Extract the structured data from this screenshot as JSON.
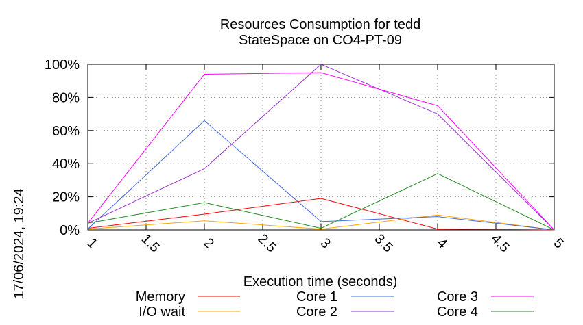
{
  "chart_data": {
    "type": "line",
    "title_line1": "Resources Consumption for tedd",
    "title_line2": "StateSpace on CO4-PT-09",
    "xlabel": "Execution time (seconds)",
    "ylabel": "",
    "side_label": "17/06/2024, 19:24",
    "xlim": [
      1,
      5
    ],
    "ylim": [
      0,
      100
    ],
    "x_ticks": [
      "1",
      "1.5",
      "2",
      "2.5",
      "3",
      "3.5",
      "4",
      "4.5",
      "5"
    ],
    "y_ticks": [
      "0%",
      "20%",
      "40%",
      "60%",
      "80%",
      "100%"
    ],
    "grid": true,
    "legend_position": "bottom",
    "x": [
      1,
      2,
      3,
      4,
      5
    ],
    "series": [
      {
        "name": "Memory",
        "color": "#ff0000",
        "values": [
          1,
          9.5,
          19,
          0.5,
          0
        ]
      },
      {
        "name": "I/O wait",
        "color": "#ffa500",
        "values": [
          0.5,
          5.5,
          0.5,
          9,
          0
        ]
      },
      {
        "name": "Core 1",
        "color": "#4169e1",
        "values": [
          0.5,
          66,
          5,
          8,
          0
        ]
      },
      {
        "name": "Core 2",
        "color": "#9932cc",
        "values": [
          4,
          37,
          100,
          70,
          0
        ]
      },
      {
        "name": "Core 3",
        "color": "#ff00ff",
        "values": [
          4,
          94,
          95,
          75,
          0
        ]
      },
      {
        "name": "Core 4",
        "color": "#228b22",
        "values": [
          4,
          16.5,
          1,
          34,
          0
        ]
      }
    ]
  }
}
